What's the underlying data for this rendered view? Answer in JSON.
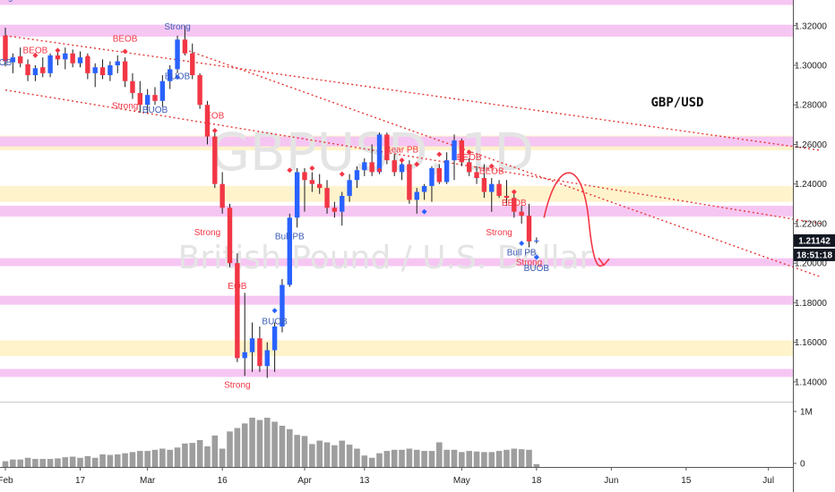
{
  "chart_data": {
    "type": "candlestick",
    "symbol_title": "GBP/USD",
    "watermark_symbol": "GBPUSD, 1D",
    "watermark_name": "British Pound / U.S. Dollar",
    "price_axis": {
      "range": [
        1.13,
        1.333
      ],
      "ticks": [
        "1.32000",
        "1.30000",
        "1.28000",
        "1.26000",
        "1.24000",
        "1.22000",
        "1.20000",
        "1.18000",
        "1.16000",
        "1.14000"
      ]
    },
    "current_price_label": "1.21142",
    "countdown_label": "18:51:18",
    "volume_axis": {
      "ticks": [
        "1M",
        "0"
      ],
      "max": 1000000
    },
    "date_ticks": [
      {
        "label": "Feb",
        "bar": 0
      },
      {
        "label": "17",
        "bar": 10
      },
      {
        "label": "Mar",
        "bar": 19
      },
      {
        "label": "16",
        "bar": 29
      },
      {
        "label": "Apr",
        "bar": 40
      },
      {
        "label": "13",
        "bar": 48
      },
      {
        "label": "May",
        "bar": 61
      },
      {
        "label": "18",
        "bar": 71
      },
      {
        "label": "Jun",
        "bar": 81
      },
      {
        "label": "15",
        "bar": 91
      },
      {
        "label": "Jul",
        "bar": 102
      }
    ],
    "zones": [
      {
        "low": 1.3305,
        "high": 1.3335,
        "color": "#f6c6f3"
      },
      {
        "low": 1.3145,
        "high": 1.3205,
        "color": "#f6c6f3"
      },
      {
        "low": 1.257,
        "high": 1.2645,
        "color": "#fff3cc"
      },
      {
        "low": 1.259,
        "high": 1.264,
        "color": "#f6c6f3"
      },
      {
        "low": 1.231,
        "high": 1.239,
        "color": "#fff3cc"
      },
      {
        "low": 1.2235,
        "high": 1.229,
        "color": "#f6c6f3"
      },
      {
        "low": 1.1985,
        "high": 1.2025,
        "color": "#f6c6f3"
      },
      {
        "low": 1.179,
        "high": 1.1835,
        "color": "#f6c6f3"
      },
      {
        "low": 1.153,
        "high": 1.161,
        "color": "#fff3cc"
      },
      {
        "low": 1.1425,
        "high": 1.1465,
        "color": "#f6c6f3"
      }
    ],
    "trendlines": [
      {
        "from": [
          0,
          1.315
        ],
        "to": [
          109,
          1.257
        ]
      },
      {
        "from": [
          0,
          1.2875
        ],
        "to": [
          109,
          1.22
        ]
      },
      {
        "from": [
          24,
          1.308
        ],
        "to": [
          109,
          1.193
        ]
      }
    ],
    "candles": [
      {
        "o": 1.315,
        "h": 1.319,
        "l": 1.2995,
        "c": 1.302
      },
      {
        "o": 1.3015,
        "h": 1.306,
        "l": 1.296,
        "c": 1.304
      },
      {
        "o": 1.3045,
        "h": 1.309,
        "l": 1.299,
        "c": 1.301
      },
      {
        "o": 1.3005,
        "h": 1.303,
        "l": 1.292,
        "c": 1.295
      },
      {
        "o": 1.295,
        "h": 1.3,
        "l": 1.292,
        "c": 1.2985
      },
      {
        "o": 1.299,
        "h": 1.304,
        "l": 1.294,
        "c": 1.296
      },
      {
        "o": 1.296,
        "h": 1.306,
        "l": 1.294,
        "c": 1.305
      },
      {
        "o": 1.305,
        "h": 1.308,
        "l": 1.3,
        "c": 1.303
      },
      {
        "o": 1.303,
        "h": 1.309,
        "l": 1.298,
        "c": 1.306
      },
      {
        "o": 1.306,
        "h": 1.308,
        "l": 1.299,
        "c": 1.301
      },
      {
        "o": 1.301,
        "h": 1.307,
        "l": 1.299,
        "c": 1.304
      },
      {
        "o": 1.304,
        "h": 1.306,
        "l": 1.293,
        "c": 1.296
      },
      {
        "o": 1.296,
        "h": 1.301,
        "l": 1.289,
        "c": 1.299
      },
      {
        "o": 1.299,
        "h": 1.303,
        "l": 1.293,
        "c": 1.295
      },
      {
        "o": 1.295,
        "h": 1.302,
        "l": 1.292,
        "c": 1.3
      },
      {
        "o": 1.3,
        "h": 1.305,
        "l": 1.296,
        "c": 1.302
      },
      {
        "o": 1.302,
        "h": 1.304,
        "l": 1.289,
        "c": 1.292
      },
      {
        "o": 1.292,
        "h": 1.296,
        "l": 1.283,
        "c": 1.286
      },
      {
        "o": 1.286,
        "h": 1.292,
        "l": 1.276,
        "c": 1.28
      },
      {
        "o": 1.28,
        "h": 1.288,
        "l": 1.276,
        "c": 1.285
      },
      {
        "o": 1.285,
        "h": 1.289,
        "l": 1.28,
        "c": 1.282
      },
      {
        "o": 1.282,
        "h": 1.295,
        "l": 1.279,
        "c": 1.292
      },
      {
        "o": 1.292,
        "h": 1.3,
        "l": 1.288,
        "c": 1.298
      },
      {
        "o": 1.298,
        "h": 1.315,
        "l": 1.296,
        "c": 1.313
      },
      {
        "o": 1.313,
        "h": 1.32,
        "l": 1.305,
        "c": 1.306
      },
      {
        "o": 1.306,
        "h": 1.311,
        "l": 1.293,
        "c": 1.295
      },
      {
        "o": 1.295,
        "h": 1.296,
        "l": 1.278,
        "c": 1.28
      },
      {
        "o": 1.28,
        "h": 1.282,
        "l": 1.26,
        "c": 1.264
      },
      {
        "o": 1.264,
        "h": 1.266,
        "l": 1.238,
        "c": 1.24
      },
      {
        "o": 1.24,
        "h": 1.246,
        "l": 1.225,
        "c": 1.228
      },
      {
        "o": 1.228,
        "h": 1.23,
        "l": 1.198,
        "c": 1.2
      },
      {
        "o": 1.2,
        "h": 1.205,
        "l": 1.15,
        "c": 1.152
      },
      {
        "o": 1.152,
        "h": 1.185,
        "l": 1.143,
        "c": 1.155
      },
      {
        "o": 1.155,
        "h": 1.17,
        "l": 1.145,
        "c": 1.162
      },
      {
        "o": 1.162,
        "h": 1.168,
        "l": 1.145,
        "c": 1.148
      },
      {
        "o": 1.148,
        "h": 1.16,
        "l": 1.142,
        "c": 1.156
      },
      {
        "o": 1.156,
        "h": 1.17,
        "l": 1.145,
        "c": 1.168
      },
      {
        "o": 1.168,
        "h": 1.192,
        "l": 1.165,
        "c": 1.189
      },
      {
        "o": 1.189,
        "h": 1.225,
        "l": 1.188,
        "c": 1.223
      },
      {
        "o": 1.223,
        "h": 1.248,
        "l": 1.218,
        "c": 1.246
      },
      {
        "o": 1.246,
        "h": 1.248,
        "l": 1.226,
        "c": 1.242
      },
      {
        "o": 1.242,
        "h": 1.246,
        "l": 1.236,
        "c": 1.24
      },
      {
        "o": 1.24,
        "h": 1.245,
        "l": 1.235,
        "c": 1.238
      },
      {
        "o": 1.238,
        "h": 1.242,
        "l": 1.225,
        "c": 1.228
      },
      {
        "o": 1.228,
        "h": 1.231,
        "l": 1.223,
        "c": 1.226
      },
      {
        "o": 1.226,
        "h": 1.236,
        "l": 1.219,
        "c": 1.234
      },
      {
        "o": 1.234,
        "h": 1.245,
        "l": 1.231,
        "c": 1.242
      },
      {
        "o": 1.242,
        "h": 1.249,
        "l": 1.238,
        "c": 1.247
      },
      {
        "o": 1.247,
        "h": 1.253,
        "l": 1.244,
        "c": 1.251
      },
      {
        "o": 1.251,
        "h": 1.26,
        "l": 1.244,
        "c": 1.246
      },
      {
        "o": 1.246,
        "h": 1.266,
        "l": 1.245,
        "c": 1.265
      },
      {
        "o": 1.265,
        "h": 1.266,
        "l": 1.25,
        "c": 1.252
      },
      {
        "o": 1.252,
        "h": 1.255,
        "l": 1.244,
        "c": 1.246
      },
      {
        "o": 1.246,
        "h": 1.252,
        "l": 1.242,
        "c": 1.25
      },
      {
        "o": 1.25,
        "h": 1.252,
        "l": 1.23,
        "c": 1.232
      },
      {
        "o": 1.232,
        "h": 1.238,
        "l": 1.225,
        "c": 1.236
      },
      {
        "o": 1.236,
        "h": 1.24,
        "l": 1.232,
        "c": 1.239
      },
      {
        "o": 1.239,
        "h": 1.249,
        "l": 1.231,
        "c": 1.248
      },
      {
        "o": 1.248,
        "h": 1.25,
        "l": 1.24,
        "c": 1.241
      },
      {
        "o": 1.241,
        "h": 1.256,
        "l": 1.24,
        "c": 1.252
      },
      {
        "o": 1.252,
        "h": 1.265,
        "l": 1.242,
        "c": 1.262
      },
      {
        "o": 1.262,
        "h": 1.263,
        "l": 1.249,
        "c": 1.251
      },
      {
        "o": 1.251,
        "h": 1.253,
        "l": 1.244,
        "c": 1.246
      },
      {
        "o": 1.246,
        "h": 1.249,
        "l": 1.24,
        "c": 1.243
      },
      {
        "o": 1.243,
        "h": 1.25,
        "l": 1.233,
        "c": 1.236
      },
      {
        "o": 1.236,
        "h": 1.243,
        "l": 1.226,
        "c": 1.24
      },
      {
        "o": 1.24,
        "h": 1.242,
        "l": 1.233,
        "c": 1.234
      },
      {
        "o": 1.234,
        "h": 1.242,
        "l": 1.229,
        "c": 1.233
      },
      {
        "o": 1.233,
        "h": 1.235,
        "l": 1.223,
        "c": 1.226
      },
      {
        "o": 1.226,
        "h": 1.229,
        "l": 1.22,
        "c": 1.224
      },
      {
        "o": 1.224,
        "h": 1.23,
        "l": 1.208,
        "c": 1.211
      },
      {
        "o": 1.211,
        "h": 1.213,
        "l": 1.21,
        "c": 1.2114
      }
    ],
    "volume": [
      0.1,
      0.13,
      0.13,
      0.16,
      0.14,
      0.14,
      0.14,
      0.15,
      0.17,
      0.18,
      0.16,
      0.19,
      0.16,
      0.22,
      0.21,
      0.22,
      0.24,
      0.26,
      0.28,
      0.28,
      0.3,
      0.32,
      0.3,
      0.34,
      0.41,
      0.42,
      0.47,
      0.36,
      0.55,
      0.32,
      0.62,
      0.68,
      0.76,
      0.86,
      0.82,
      0.86,
      0.79,
      0.72,
      0.66,
      0.56,
      0.54,
      0.4,
      0.46,
      0.43,
      0.38,
      0.46,
      0.39,
      0.32,
      0.2,
      0.16,
      0.24,
      0.28,
      0.3,
      0.3,
      0.32,
      0.3,
      0.28,
      0.28,
      0.43,
      0.3,
      0.3,
      0.26,
      0.28,
      0.27,
      0.26,
      0.26,
      0.28,
      0.3,
      0.32,
      0.31,
      0.3,
      0.05
    ],
    "annotations": [
      {
        "text": "BEOB",
        "bar": 4,
        "price": 1.306,
        "color": "#f23645",
        "marker": "diamond-red",
        "mprice": 1.305
      },
      {
        "text": "BEOB",
        "bar": 16,
        "price": 1.312,
        "color": "#f23645",
        "marker": "diamond-red",
        "mprice": 1.307
      },
      {
        "text": "Strong",
        "bar": 23,
        "price": 1.318,
        "color": "#3b5bb5",
        "marker": "",
        "mprice": 0
      },
      {
        "text": "BUOB",
        "bar": 23,
        "price": 1.293,
        "color": "#3b5bb5",
        "marker": "diamond-blue",
        "mprice": 1.294
      },
      {
        "text": "Strong",
        "bar": 16,
        "price": 1.278,
        "color": "#f23645",
        "marker": "",
        "mprice": 0
      },
      {
        "text": "BUOB",
        "bar": 20,
        "price": 1.276,
        "color": "#3b5bb5",
        "marker": "",
        "mprice": 0
      },
      {
        "text": "ong",
        "bar": 0,
        "price": 1.333,
        "color": "#3b5bb5",
        "marker": "",
        "mprice": 0
      },
      {
        "text": "OB",
        "bar": 0,
        "price": 1.3,
        "color": "#3b5bb5",
        "marker": "",
        "mprice": 0
      },
      {
        "text": "EOB",
        "bar": 28,
        "price": 1.273,
        "color": "#f23645",
        "marker": "diamond-red",
        "mprice": 1.267
      },
      {
        "text": "Strong",
        "bar": 27,
        "price": 1.214,
        "color": "#f23645",
        "marker": "",
        "mprice": 0
      },
      {
        "text": "Bull PB",
        "bar": 38,
        "price": 1.212,
        "color": "#3b5bb5",
        "marker": "diamond-blue",
        "mprice": 1.217
      },
      {
        "text": "Bear PB",
        "bar": 53,
        "price": 1.256,
        "color": "#f23645",
        "marker": "diamond-red",
        "mprice": 1.252
      },
      {
        "text": "BEOB",
        "bar": 62,
        "price": 1.252,
        "color": "#f23645",
        "marker": "diamond-red",
        "mprice": 1.256
      },
      {
        "text": "BEOB",
        "bar": 65,
        "price": 1.245,
        "color": "#f23645",
        "marker": "diamond-red",
        "mprice": 1.249
      },
      {
        "text": "BEOB",
        "bar": 68,
        "price": 1.229,
        "color": "#f23645",
        "marker": "diamond-red",
        "mprice": 1.236
      },
      {
        "text": "Strong",
        "bar": 66,
        "price": 1.214,
        "color": "#f23645",
        "marker": "",
        "mprice": 0
      },
      {
        "text": "Bull PB",
        "bar": 69,
        "price": 1.204,
        "color": "#3b5bb5",
        "marker": "diamond-blue",
        "mprice": 1.21
      },
      {
        "text": "Strong",
        "bar": 70,
        "price": 1.199,
        "color": "#f23645",
        "marker": "",
        "mprice": 0
      },
      {
        "text": "BUOB",
        "bar": 71,
        "price": 1.196,
        "color": "#3b5bb5",
        "marker": "diamond-blue",
        "mprice": 1.203
      },
      {
        "text": "EOB",
        "bar": 31,
        "price": 1.187,
        "color": "#f23645",
        "marker": "",
        "mprice": 0
      },
      {
        "text": "BUOB",
        "bar": 36,
        "price": 1.169,
        "color": "#3b5bb5",
        "marker": "diamond-blue",
        "mprice": 1.176
      },
      {
        "text": "Strong",
        "bar": 31,
        "price": 1.137,
        "color": "#f23645",
        "marker": "",
        "mprice": 0
      }
    ],
    "extra_markers": [
      {
        "bar": 7,
        "price": 1.3075,
        "type": "diamond-red"
      },
      {
        "bar": 11,
        "price": 1.304,
        "type": "diamond-red"
      },
      {
        "bar": 38,
        "price": 1.247,
        "type": "diamond-red"
      },
      {
        "bar": 41,
        "price": 1.248,
        "type": "diamond-red"
      },
      {
        "bar": 45,
        "price": 1.245,
        "type": "diamond-red"
      },
      {
        "bar": 56,
        "price": 1.226,
        "type": "diamond-blue"
      },
      {
        "bar": 55,
        "price": 1.25,
        "type": "diamond-red"
      },
      {
        "bar": 58,
        "price": 1.255,
        "type": "diamond-red"
      },
      {
        "bar": 50,
        "price": 1.247,
        "type": "diamond-red"
      }
    ],
    "projection": {
      "path": [
        [
          72,
          1.223
        ],
        [
          75,
          1.24
        ],
        [
          78,
          1.221
        ],
        [
          80,
          1.199
        ]
      ],
      "color": "#f23645"
    },
    "colors": {
      "up": "#2962ff",
      "down": "#f23645",
      "wick": "#1a1a1a",
      "volume": "#9e9e9e",
      "trend": "#e53935",
      "price_badge": "#131722"
    }
  }
}
